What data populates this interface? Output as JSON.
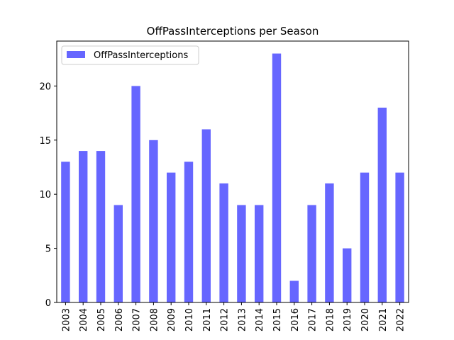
{
  "chart_data": {
    "type": "bar",
    "title": "OffPassInterceptions per Season",
    "xlabel": "",
    "ylabel": "",
    "categories": [
      "2003",
      "2004",
      "2005",
      "2006",
      "2007",
      "2008",
      "2009",
      "2010",
      "2011",
      "2012",
      "2013",
      "2014",
      "2015",
      "2016",
      "2017",
      "2018",
      "2019",
      "2020",
      "2021",
      "2022"
    ],
    "series": [
      {
        "name": "OffPassInterceptions",
        "color": "#6666ff",
        "values": [
          13,
          14,
          14,
          9,
          20,
          15,
          12,
          13,
          16,
          11,
          9,
          9,
          23,
          2,
          9,
          11,
          5,
          12,
          18,
          12
        ]
      }
    ],
    "ylim": [
      0,
      24.15
    ],
    "yticks": [
      0,
      5,
      10,
      15,
      20
    ],
    "grid": false,
    "legend_position": "top-left"
  }
}
